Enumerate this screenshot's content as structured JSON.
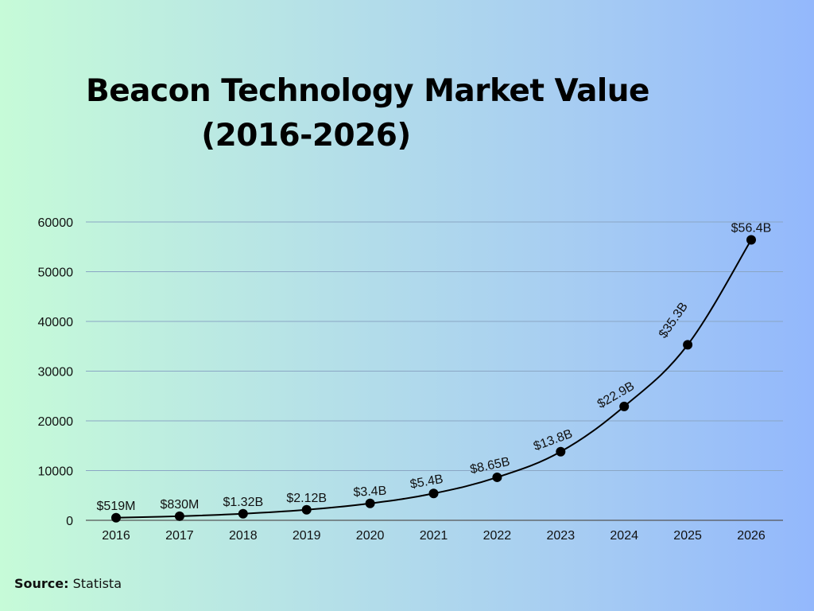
{
  "chart_data": {
    "type": "line",
    "title_line1": "Beacon Technology Market Value",
    "title_line2": "(2016-2026)",
    "categories": [
      "2016",
      "2017",
      "2018",
      "2019",
      "2020",
      "2021",
      "2022",
      "2023",
      "2024",
      "2025",
      "2026"
    ],
    "values": [
      519,
      830,
      1320,
      2120,
      3400,
      5400,
      8650,
      13800,
      22900,
      35300,
      56400
    ],
    "data_labels": [
      "$519M",
      "$830M",
      "$1.32B",
      "$2.12B",
      "$3.4B",
      "$5.4B",
      "$8.65B",
      "$13.8B",
      "$22.9B",
      "$35.3B",
      "$56.4B"
    ],
    "yticks": [
      0,
      10000,
      20000,
      30000,
      40000,
      50000,
      60000
    ],
    "ylim": [
      0,
      60000
    ],
    "grid": true,
    "line_color": "#000000",
    "gridline_color": "#8aa6c4"
  },
  "source": {
    "label": "Source:",
    "value": "Statista"
  }
}
